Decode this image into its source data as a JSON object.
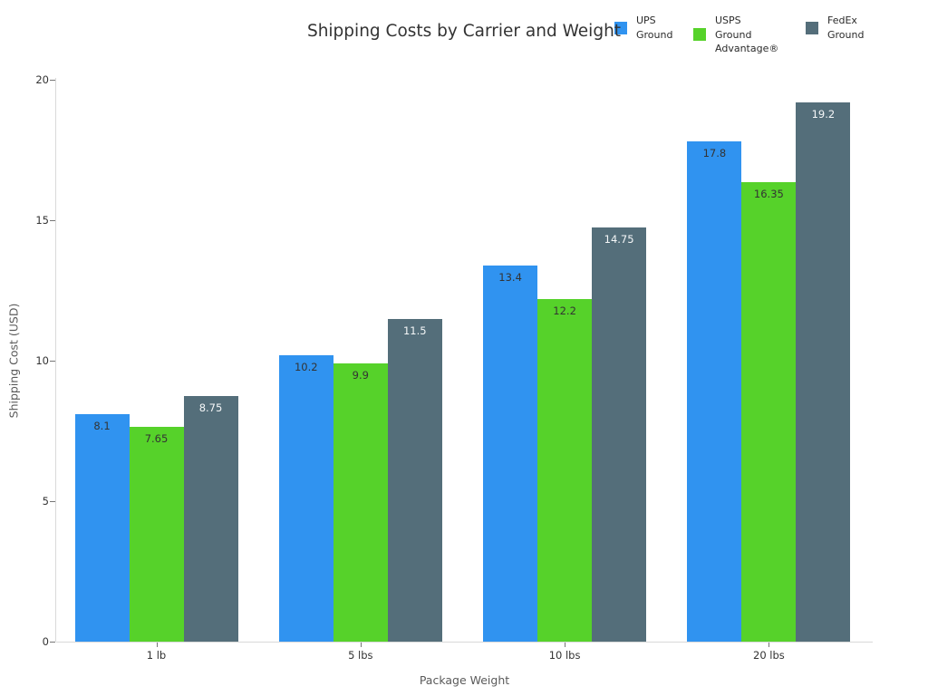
{
  "title": "Shipping Costs by Carrier and Weight",
  "chart_data": {
    "type": "bar",
    "title": "Shipping Costs by Carrier and Weight",
    "xlabel": "Package Weight",
    "ylabel": "Shipping Cost (USD)",
    "categories": [
      "1 lb",
      "5 lbs",
      "10 lbs",
      "20 lbs"
    ],
    "series": [
      {
        "name": "UPS Ground",
        "legend_label": "UPS\nGround",
        "color": "#3093f0",
        "value_label_color": "#333333",
        "values": [
          8.1,
          10.2,
          13.4,
          17.8
        ]
      },
      {
        "name": "USPS Ground Advantage®",
        "legend_label": "USPS\nGround\nAdvantage®",
        "color": "#56d22a",
        "value_label_color": "#333333",
        "values": [
          7.65,
          9.9,
          12.2,
          16.35
        ]
      },
      {
        "name": "FedEx Ground",
        "legend_label": "FedEx\nGround",
        "color": "#546e7a",
        "value_label_color": "#f5f7f8",
        "values": [
          8.75,
          11.5,
          14.75,
          19.2
        ]
      }
    ],
    "ylim": [
      0,
      20
    ],
    "yticks": [
      0,
      5,
      10,
      15,
      20
    ],
    "grid": false,
    "legend_position": "top-right",
    "background_color": "#ffffff"
  }
}
